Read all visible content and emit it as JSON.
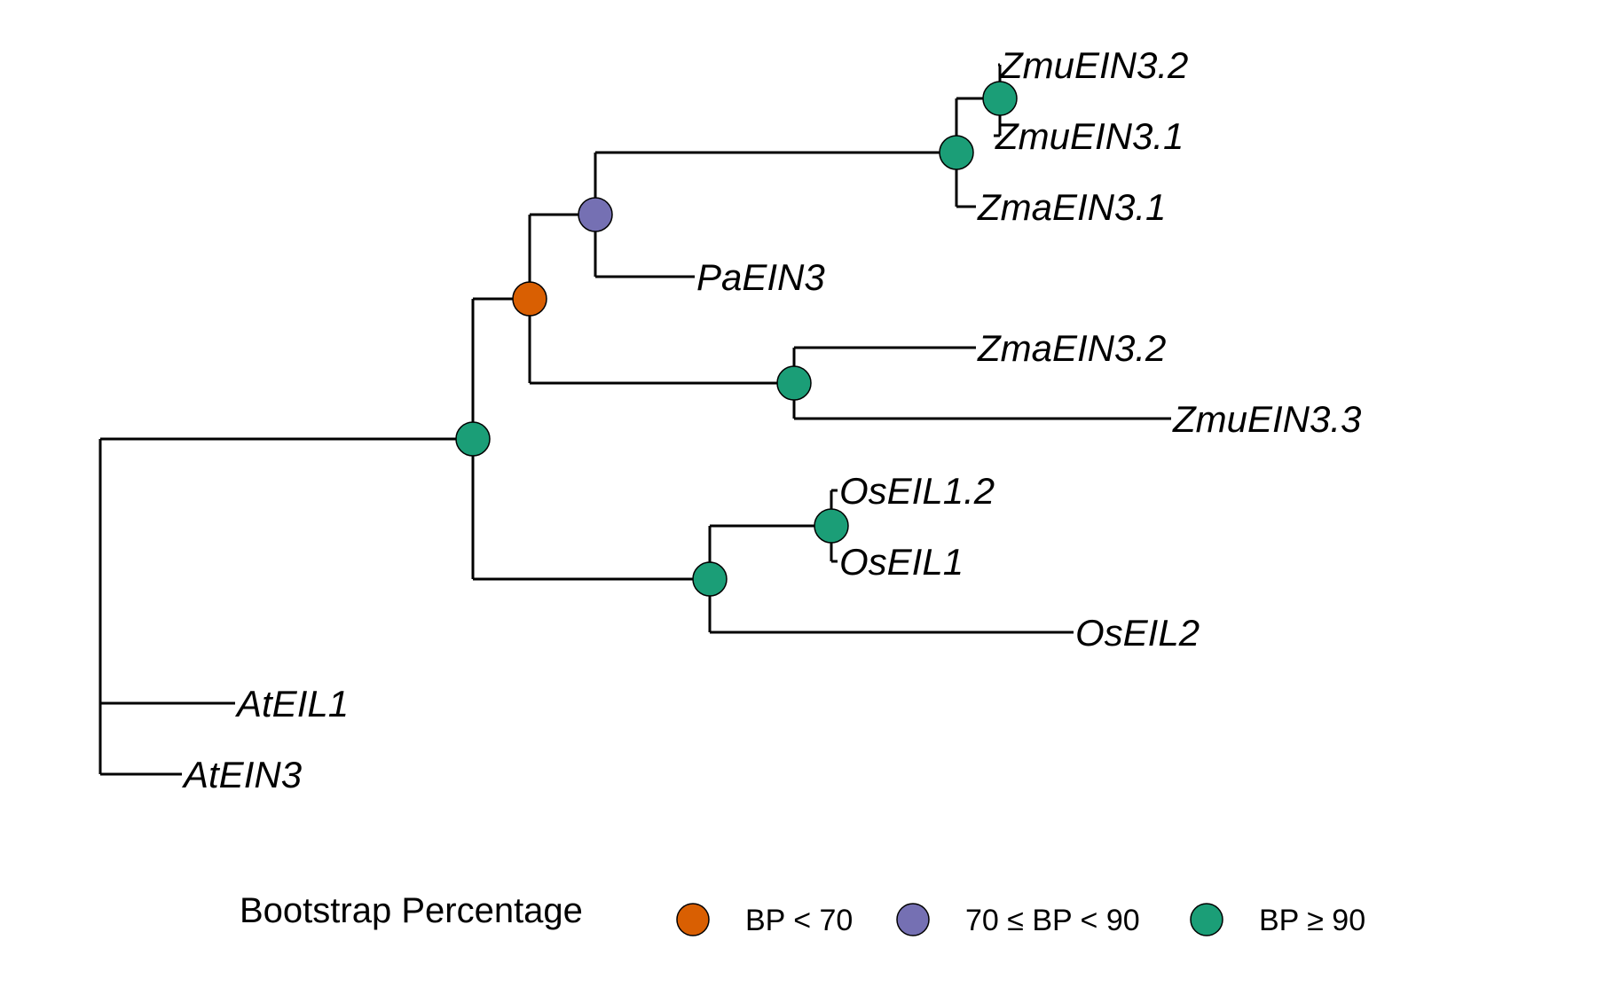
{
  "colors": {
    "low": "#d95f02",
    "mid": "#7570b3",
    "high": "#1b9e77",
    "branch": "#000000"
  },
  "tips": [
    {
      "id": "zmuein32",
      "label": "ZmuEIN3.2"
    },
    {
      "id": "zmuein31",
      "label": "ZmuEIN3.1"
    },
    {
      "id": "zmaein31",
      "label": "ZmaEIN3.1"
    },
    {
      "id": "paein3",
      "label": "PaEIN3"
    },
    {
      "id": "zmaein32",
      "label": "ZmaEIN3.2"
    },
    {
      "id": "zmuein33",
      "label": "ZmuEIN3.3"
    },
    {
      "id": "oseil12",
      "label": "OsEIL1.2"
    },
    {
      "id": "oseil1",
      "label": "OsEIL1"
    },
    {
      "id": "oseil2",
      "label": "OsEIL2"
    },
    {
      "id": "ateil1",
      "label": "AtEIL1"
    },
    {
      "id": "atein3",
      "label": "AtEIN3"
    }
  ],
  "nodes": [
    {
      "id": "n-zmu",
      "bootstrap_class": "high"
    },
    {
      "id": "n-zm",
      "bootstrap_class": "high"
    },
    {
      "id": "n-zm-pa",
      "bootstrap_class": "mid"
    },
    {
      "id": "n-ein3-clade",
      "bootstrap_class": "low"
    },
    {
      "id": "n-zma32-zmu33",
      "bootstrap_class": "high"
    },
    {
      "id": "n-os1",
      "bootstrap_class": "high"
    },
    {
      "id": "n-os",
      "bootstrap_class": "high"
    },
    {
      "id": "n-monocot",
      "bootstrap_class": "high"
    }
  ],
  "legend": {
    "title": "Bootstrap Percentage",
    "items": [
      {
        "label": "BP < 70",
        "color_key": "low"
      },
      {
        "label": "70 ≤ BP < 90",
        "color_key": "mid"
      },
      {
        "label": "BP ≥ 90",
        "color_key": "high"
      }
    ]
  }
}
